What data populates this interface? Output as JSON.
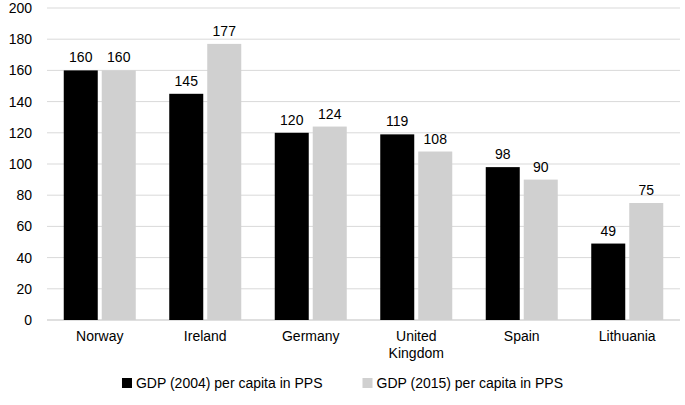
{
  "chart_data": {
    "type": "bar",
    "categories": [
      "Norway",
      "Ireland",
      "Germany",
      "United Kingdom",
      "Spain",
      "Lithuania"
    ],
    "series": [
      {
        "name": "GDP (2004) per capita in PPS",
        "color": "#000000",
        "values": [
          160,
          145,
          120,
          119,
          98,
          49
        ]
      },
      {
        "name": "GDP (2015) per capita in PPS",
        "color": "#d0d0d0",
        "values": [
          160,
          177,
          124,
          108,
          90,
          75
        ]
      }
    ],
    "ylim": [
      0,
      200
    ],
    "yticks": [
      0,
      20,
      40,
      60,
      80,
      100,
      120,
      140,
      160,
      180,
      200
    ],
    "grid": true,
    "data_labels": true,
    "legend": "bottom"
  }
}
